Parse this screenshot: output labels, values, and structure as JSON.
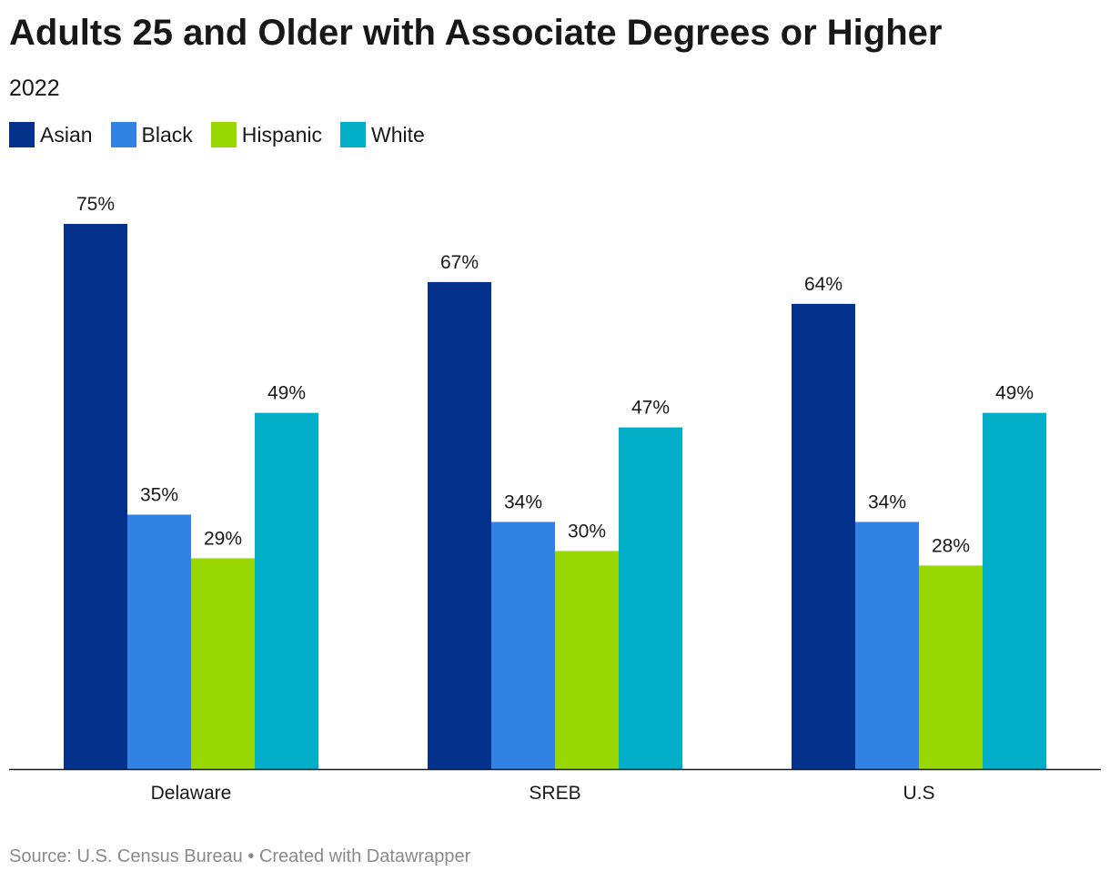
{
  "title": "Adults 25 and Older with Associate Degrees or Higher",
  "subtitle": "2022",
  "footer": {
    "source": "Source: U.S. Census Bureau",
    "separator": "•",
    "credit": "Created with Datawrapper"
  },
  "chart_data": {
    "type": "bar",
    "categories": [
      "Delaware",
      "SREB",
      "U.S"
    ],
    "series": [
      {
        "name": "Asian",
        "color": "#03318c",
        "values": [
          75,
          67,
          64
        ]
      },
      {
        "name": "Black",
        "color": "#3083e3",
        "values": [
          35,
          34,
          34
        ]
      },
      {
        "name": "Hispanic",
        "color": "#99d700",
        "values": [
          29,
          30,
          28
        ]
      },
      {
        "name": "White",
        "color": "#00aec8",
        "values": [
          49,
          47,
          49
        ]
      }
    ],
    "value_suffix": "%",
    "ylim": [
      0,
      75
    ],
    "grid": false,
    "legend_position": "top-left"
  }
}
